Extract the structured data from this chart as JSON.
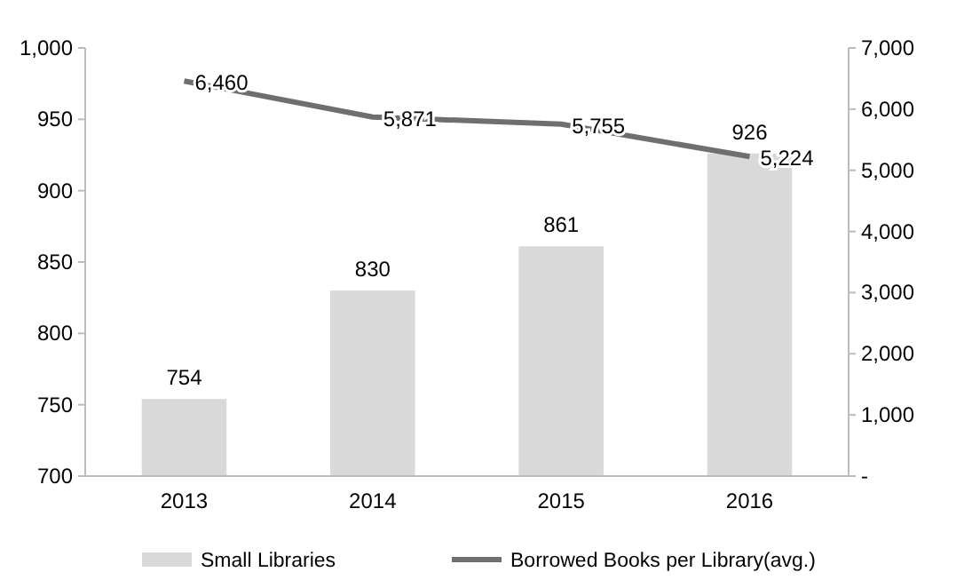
{
  "chart_data": {
    "type": "bar",
    "categories": [
      "2013",
      "2014",
      "2015",
      "2016"
    ],
    "series": [
      {
        "name": "Small Libraries",
        "color": "#d9d9d9",
        "values": [
          754,
          830,
          861,
          926
        ]
      },
      {
        "name": "Borrowed Books per Library(avg.)",
        "type": "line",
        "axis": "y2",
        "color": "#6f6f6f",
        "values": [
          6460,
          5871,
          5755,
          5224
        ],
        "value_labels": [
          "6,460",
          "5,871",
          "5,755",
          "5,224"
        ]
      }
    ],
    "ylim": [
      700,
      1000
    ],
    "yticks": [
      700,
      750,
      800,
      850,
      900,
      950,
      {
        "value": 1000,
        "label": "1,000"
      }
    ],
    "y2lim": [
      0,
      7000
    ],
    "y2ticks": [
      {
        "value": 0,
        "label": "-"
      },
      {
        "value": 1000,
        "label": "1,000"
      },
      {
        "value": 2000,
        "label": "2,000"
      },
      {
        "value": 3000,
        "label": "3,000"
      },
      {
        "value": 4000,
        "label": "4,000"
      },
      {
        "value": 5000,
        "label": "5,000"
      },
      {
        "value": 6000,
        "label": "6,000"
      },
      {
        "value": 7000,
        "label": "7,000"
      }
    ],
    "data_labels": true,
    "legend": "bottom",
    "grid": false,
    "marker": "none",
    "line_style": "solid"
  }
}
